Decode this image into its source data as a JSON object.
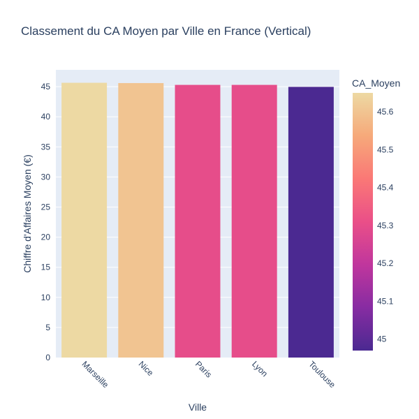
{
  "chart_data": {
    "type": "bar",
    "title": "Classement du CA Moyen par Ville en France (Vertical)",
    "xlabel": "Ville",
    "ylabel": "Chiffre d'Affaires Moyen (€)",
    "categories": [
      "Marseille",
      "Nice",
      "Paris",
      "Lyon",
      "Toulouse"
    ],
    "values": [
      45.65,
      45.6,
      45.3,
      45.3,
      44.97
    ],
    "ylim": [
      0,
      47.8
    ],
    "yticks": [
      0,
      5,
      10,
      15,
      20,
      25,
      30,
      35,
      40,
      45
    ],
    "grid": true,
    "colorbar": {
      "title": "CA_Moyen",
      "range": [
        44.97,
        45.65
      ],
      "ticks": [
        45,
        45.1,
        45.2,
        45.3,
        45.4,
        45.5,
        45.6
      ],
      "colorscale": [
        "#4b2991",
        "#872ca2",
        "#c0369d",
        "#ea4f88",
        "#fa7876",
        "#f6a97a",
        "#edd9a3"
      ]
    },
    "colors": {
      "plot_bg": "#e5ecf6",
      "grid": "#ffffff",
      "text": "#2a3f5f"
    }
  }
}
